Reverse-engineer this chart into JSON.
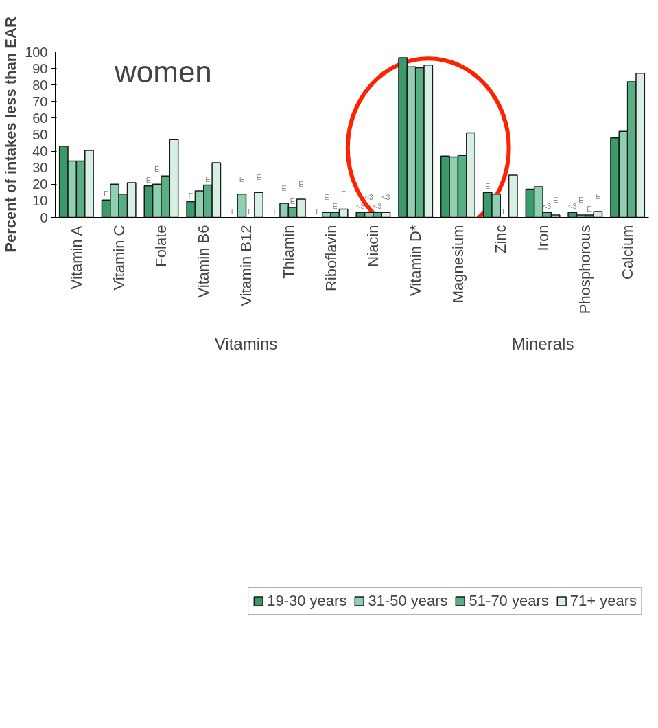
{
  "chart_data": {
    "type": "bar",
    "title": "women",
    "ylabel": "Percent of intakes less than EAR",
    "categories": [
      "Vitamin A",
      "Vitamin C",
      "Folate",
      "Vitamin B6",
      "Vitamin B12",
      "Thiamin",
      "Riboflavin",
      "Niacin",
      "Vitamin D*",
      "Magnesium",
      "Zinc",
      "Iron",
      "Phosphorous",
      "Calcium"
    ],
    "series": [
      {
        "name": "19-30 years",
        "color": "#3a9a6a",
        "values": [
          43,
          10.5,
          19,
          9.5,
          null,
          null,
          null,
          3,
          96.5,
          37,
          15,
          17,
          3,
          48
        ],
        "value_labels": [
          null,
          "E",
          "E",
          "E",
          "F",
          "F",
          "F",
          "<3",
          null,
          null,
          "E",
          null,
          "<3",
          null
        ]
      },
      {
        "name": "31-50 years",
        "color": "#8fd0b0",
        "values": [
          34,
          20,
          20,
          16,
          14,
          8.5,
          3,
          3,
          91,
          36.5,
          14,
          18.5,
          1.5,
          52
        ],
        "value_labels": [
          null,
          null,
          "E",
          null,
          "E",
          "E",
          "E",
          "<3",
          null,
          null,
          null,
          null,
          "E",
          null
        ]
      },
      {
        "name": "51-70 years",
        "color": "#5aae84",
        "values": [
          34,
          14,
          25,
          19.5,
          null,
          6,
          3,
          3,
          90.5,
          37.5,
          null,
          3,
          1.5,
          82
        ],
        "value_labels": [
          null,
          null,
          null,
          "E",
          "F",
          "E",
          "E",
          "<3",
          null,
          null,
          "F",
          "<3",
          "E",
          null
        ]
      },
      {
        "name": "71+ years",
        "color": "#d8f0e4",
        "values": [
          40.5,
          21,
          47,
          33,
          15,
          11,
          5,
          3,
          92,
          51,
          25.5,
          1.5,
          3.5,
          87
        ],
        "value_labels": [
          null,
          null,
          null,
          null,
          "E",
          "E",
          "E",
          "<3",
          null,
          null,
          null,
          "E",
          "E",
          null
        ]
      }
    ],
    "annotations": [
      "Vitamins",
      "Minerals"
    ],
    "ylim": [
      0,
      100
    ],
    "yticks": [
      0,
      10,
      20,
      30,
      40,
      50,
      60,
      70,
      80,
      90,
      100
    ],
    "grid": false,
    "legend": "bottom"
  }
}
